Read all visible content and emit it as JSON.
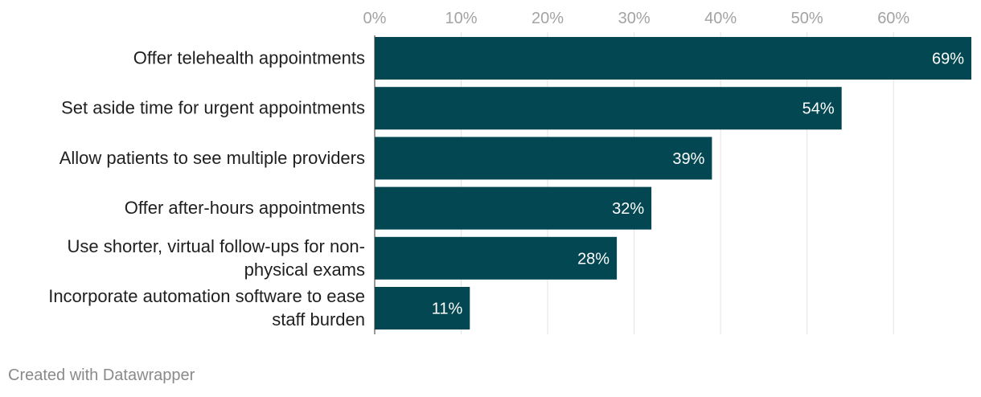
{
  "chart_data": {
    "type": "bar",
    "orientation": "horizontal",
    "categories": [
      "Offer telehealth appointments",
      "Set aside time for urgent appointments",
      "Allow patients to see multiple providers",
      "Offer after-hours appointments",
      "Use shorter, virtual follow-ups for non-physical exams",
      "Incorporate automation software to ease staff burden"
    ],
    "category_lines": [
      [
        "Offer telehealth appointments"
      ],
      [
        "Set aside time for urgent appointments"
      ],
      [
        "Allow patients to see multiple providers"
      ],
      [
        "Offer after-hours appointments"
      ],
      [
        "Use shorter, virtual follow-ups for non-",
        "physical exams"
      ],
      [
        "Incorporate automation software to ease",
        "staff burden"
      ]
    ],
    "values": [
      69,
      54,
      39,
      32,
      28,
      11
    ],
    "value_labels": [
      "69%",
      "54%",
      "39%",
      "32%",
      "28%",
      "11%"
    ],
    "x_ticks": [
      0,
      10,
      20,
      30,
      40,
      50,
      60
    ],
    "x_tick_labels": [
      "0%",
      "10%",
      "20%",
      "30%",
      "40%",
      "50%",
      "60%"
    ],
    "xlim": [
      0,
      69
    ],
    "grid": true,
    "bar_color": "#024751",
    "value_label_color": "#ffffff",
    "title": "",
    "xlabel": "",
    "ylabel": ""
  },
  "footer": {
    "credit": "Created with Datawrapper"
  }
}
